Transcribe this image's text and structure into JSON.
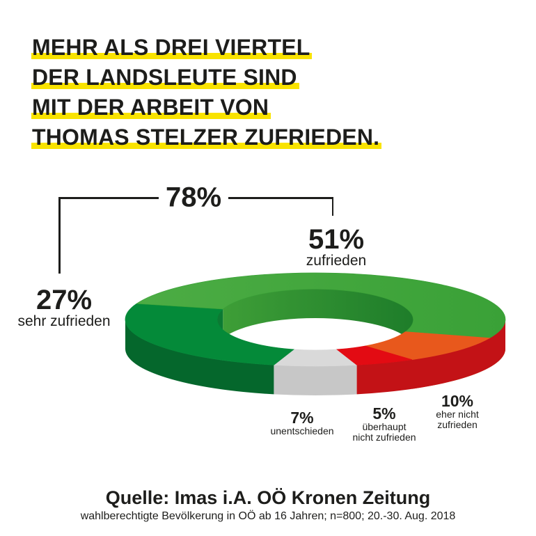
{
  "title": {
    "lines": [
      "MEHR ALS DREI VIERTEL",
      "DER LANDSLEUTE SIND",
      "MIT DER ARBEIT VON",
      "THOMAS STELZER ZUFRIEDEN."
    ],
    "highlight_color": "#F9E300",
    "text_color": "#1D1D1B"
  },
  "bracket": {
    "label": "78%"
  },
  "callouts": {
    "zufrieden": {
      "value": "51%",
      "label": "zufrieden"
    },
    "sehr_zufrieden": {
      "value": "27%",
      "label": "sehr zufrieden"
    },
    "unentschieden": {
      "value": "7%",
      "label": "unentschieden"
    },
    "ueberhaupt": {
      "value": "5%",
      "label_lines": [
        "überhaupt",
        "nicht zufrieden"
      ]
    },
    "eher_nicht": {
      "value": "10%",
      "label_lines": [
        "eher nicht",
        "zufrieden"
      ]
    }
  },
  "source": {
    "line1": "Quelle: Imas i.A. OÖ Kronen Zeitung",
    "line2": "wahlberechtigte Bevölkerung in OÖ ab 16 Jahren; n=800; 20.-30. Aug. 2018"
  },
  "chart_data": {
    "type": "pie",
    "variant": "3d-donut",
    "title": "Zufriedenheit mit der Arbeit von Thomas Stelzer",
    "categories": [
      "zufrieden",
      "sehr zufrieden",
      "unentschieden",
      "überhaupt nicht zufrieden",
      "eher nicht zufrieden"
    ],
    "values": [
      51,
      27,
      7,
      5,
      10
    ],
    "unit": "%",
    "combined": {
      "label": "78%",
      "note": "zufrieden + sehr zufrieden"
    },
    "legend_position": "callouts-around-chart",
    "draw_order": [
      {
        "name": "unentschieden",
        "label": "unentschieden",
        "value": 7,
        "top": "#D9D9D9",
        "wall": "#C7C7C7"
      },
      {
        "name": "sehr-zufrieden",
        "label": "sehr zufrieden",
        "value": 27,
        "top": "#048A39",
        "wall": "#05672C",
        "inner": "#0B7A33"
      },
      {
        "name": "zufrieden",
        "label": "zufrieden",
        "value": 51,
        "top": "#41A63B",
        "wall": "#2E8C30",
        "top_gradient": [
          "#4CAC44",
          "#3AA137"
        ],
        "inner_gradient": [
          "#3E9E37",
          "#1E7D2A"
        ]
      },
      {
        "name": "eher-nicht-zufrieden",
        "label": "eher nicht zufrieden",
        "value": 10,
        "top": "#E8581C",
        "wall": "#CC4A13"
      },
      {
        "name": "ueberhaupt-nicht-zufrieden",
        "label": "überhaupt nicht zufrieden",
        "value": 5,
        "top": "#E30B13",
        "wall": "#C31216"
      }
    ]
  }
}
